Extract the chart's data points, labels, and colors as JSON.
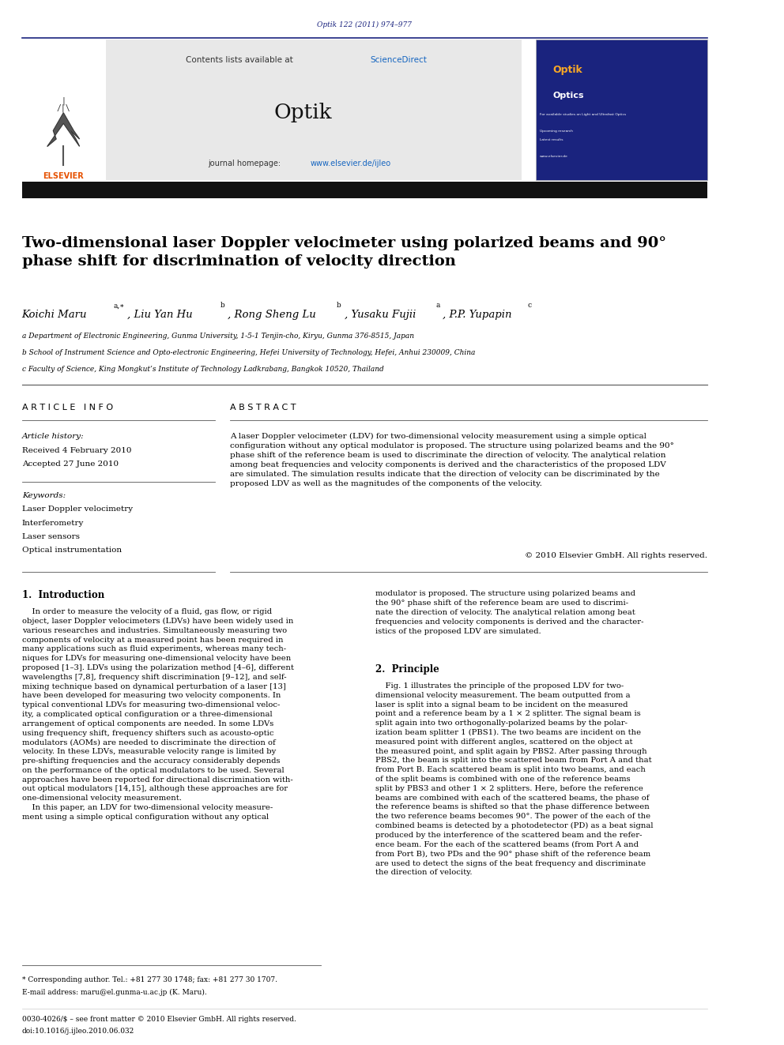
{
  "page_width": 9.92,
  "page_height": 13.23,
  "bg_color": "#ffffff",
  "journal_ref": "Optik 122 (2011) 974–977",
  "journal_ref_color": "#1a237e",
  "header_bg": "#e8e8e8",
  "contents_text": "Contents lists available at ",
  "sciencedirect_text": "ScienceDirect",
  "sciencedirect_color": "#1565c0",
  "journal_name": "Optik",
  "homepage_text": "journal homepage: ",
  "homepage_url": "www.elsevier.de/ijleo",
  "homepage_url_color": "#1565c0",
  "dark_bar_color": "#1a1a1a",
  "title": "Two-dimensional laser Doppler velocimeter using polarized beams and 90°\nphase shift for discrimination of velocity direction",
  "title_fontsize": 14,
  "title_color": "#000000",
  "affil_a": "a Department of Electronic Engineering, Gunma University, 1-5-1 Tenjin-cho, Kiryu, Gunma 376-8515, Japan",
  "affil_b": "b School of Instrument Science and Opto-electronic Engineering, Hefei University of Technology, Hefei, Anhui 230009, China",
  "affil_c": "c Faculty of Science, King Mongkut’s Institute of Technology Ladkrabang, Bangkok 10520, Thailand",
  "article_info_title": "A R T I C L E   I N F O",
  "article_history_label": "Article history:",
  "received_text": "Received 4 February 2010",
  "accepted_text": "Accepted 27 June 2010",
  "keywords_label": "Keywords:",
  "keyword1": "Laser Doppler velocimetry",
  "keyword2": "Interferometry",
  "keyword3": "Laser sensors",
  "keyword4": "Optical instrumentation",
  "abstract_title": "A B S T R A C T",
  "abstract_text": "A laser Doppler velocimeter (LDV) for two-dimensional velocity measurement using a simple optical\nconfiguration without any optical modulator is proposed. The structure using polarized beams and the 90°\nphase shift of the reference beam is used to discriminate the direction of velocity. The analytical relation\namong beat frequencies and velocity components is derived and the characteristics of the proposed LDV\nare simulated. The simulation results indicate that the direction of velocity can be discriminated by the\nproposed LDV as well as the magnitudes of the components of the velocity.",
  "copyright_text": "© 2010 Elsevier GmbH. All rights reserved.",
  "section1_title": "1.  Introduction",
  "section1_col1": "    In order to measure the velocity of a fluid, gas flow, or rigid\nobject, laser Doppler velocimeters (LDVs) have been widely used in\nvarious researches and industries. Simultaneously measuring two\ncomponents of velocity at a measured point has been required in\nmany applications such as fluid experiments, whereas many tech-\nniques for LDVs for measuring one-dimensional velocity have been\nproposed [1–3]. LDVs using the polarization method [4–6], different\nwavelengths [7,8], frequency shift discrimination [9–12], and self-\nmixing technique based on dynamical perturbation of a laser [13]\nhave been developed for measuring two velocity components. In\ntypical conventional LDVs for measuring two-dimensional veloc-\nity, a complicated optical configuration or a three-dimensional\narrangement of optical components are needed. In some LDVs\nusing frequency shift, frequency shifters such as acousto-optic\nmodulators (AOMs) are needed to discriminate the direction of\nvelocity. In these LDVs, measurable velocity range is limited by\npre-shifting frequencies and the accuracy considerably depends\non the performance of the optical modulators to be used. Several\napproaches have been reported for directional discrimination with-\nout optical modulators [14,15], although these approaches are for\none-dimensional velocity measurement.\n    In this paper, an LDV for two-dimensional velocity measure-\nment using a simple optical configuration without any optical",
  "section2_col2_intro": "modulator is proposed. The structure using polarized beams and\nthe 90° phase shift of the reference beam are used to discrimi-\nnate the direction of velocity. The analytical relation among beat\nfrequencies and velocity components is derived and the character-\nistics of the proposed LDV are simulated.",
  "section2_title": "2.  Principle",
  "section2_text": "    Fig. 1 illustrates the principle of the proposed LDV for two-\ndimensional velocity measurement. The beam outputted from a\nlaser is split into a signal beam to be incident on the measured\npoint and a reference beam by a 1 × 2 splitter. The signal beam is\nsplit again into two orthogonally-polarized beams by the polar-\nization beam splitter 1 (PBS1). The two beams are incident on the\nmeasured point with different angles, scattered on the object at\nthe measured point, and split again by PBS2. After passing through\nPBS2, the beam is split into the scattered beam from Port A and that\nfrom Port B. Each scattered beam is split into two beams, and each\nof the split beams is combined with one of the reference beams\nsplit by PBS3 and other 1 × 2 splitters. Here, before the reference\nbeams are combined with each of the scattered beams, the phase of\nthe reference beams is shifted so that the phase difference between\nthe two reference beams becomes 90°. The power of the each of the\ncombined beams is detected by a photodetector (PD) as a beat signal\nproduced by the interference of the scattered beam and the refer-\nence beam. For the each of the scattered beams (from Port A and\nfrom Port B), two PDs and the 90° phase shift of the reference beam\nare used to detect the signs of the beat frequency and discriminate\nthe direction of velocity.",
  "footnote_star": "* Corresponding author. Tel.: +81 277 30 1748; fax: +81 277 30 1707.",
  "footnote_email": "E-mail address: maru@el.gunma-u.ac.jp (K. Maru).",
  "bottom_text": "0030-4026/$ – see front matter © 2010 Elsevier GmbH. All rights reserved.",
  "doi_text": "doi:10.1016/j.ijleo.2010.06.032"
}
